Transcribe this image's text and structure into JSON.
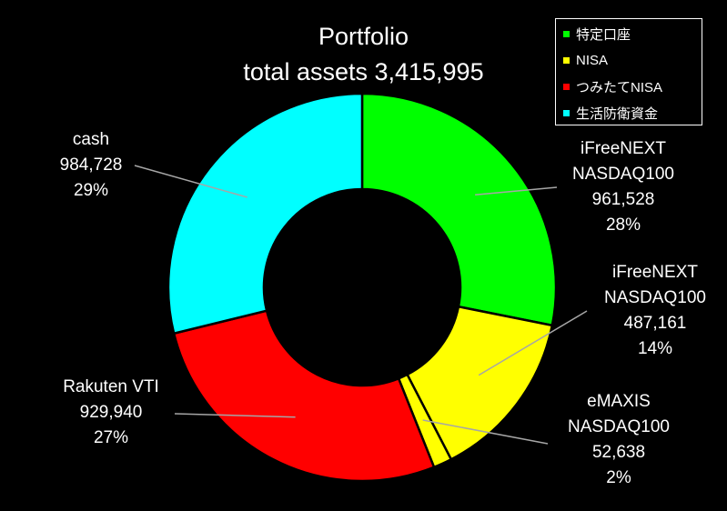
{
  "chart_data": {
    "type": "pie",
    "donut": true,
    "title": "Portfolio",
    "subtitle": "total assets 3,415,995",
    "legend": {
      "placement": "top-right",
      "entries": [
        {
          "name": "特定口座",
          "color": "#00ff00"
        },
        {
          "name": "NISA",
          "color": "#ffff00"
        },
        {
          "name": "つみたてNISA",
          "color": "#ff0000"
        },
        {
          "name": "生活防衛資金",
          "color": "#00ffff"
        }
      ]
    },
    "slices": [
      {
        "label_lines": [
          "iFreeNEXT",
          "NASDAQ100"
        ],
        "value": 961528,
        "value_text": "961,528",
        "percent_text": "28%",
        "color": "#00ff00"
      },
      {
        "label_lines": [
          "iFreeNEXT",
          "NASDAQ100"
        ],
        "value": 487161,
        "value_text": "487,161",
        "percent_text": "14%",
        "color": "#ffff00"
      },
      {
        "label_lines": [
          "eMAXIS",
          "NASDAQ100"
        ],
        "value": 52638,
        "value_text": "52,638",
        "percent_text": "2%",
        "color": "#ffff00"
      },
      {
        "label_lines": [
          "Rakuten VTI"
        ],
        "value": 929940,
        "value_text": "929,940",
        "percent_text": "27%",
        "color": "#ff0000"
      },
      {
        "label_lines": [
          "cash"
        ],
        "value": 984728,
        "value_text": "984,728",
        "percent_text": "29%",
        "color": "#00ffff"
      }
    ]
  }
}
